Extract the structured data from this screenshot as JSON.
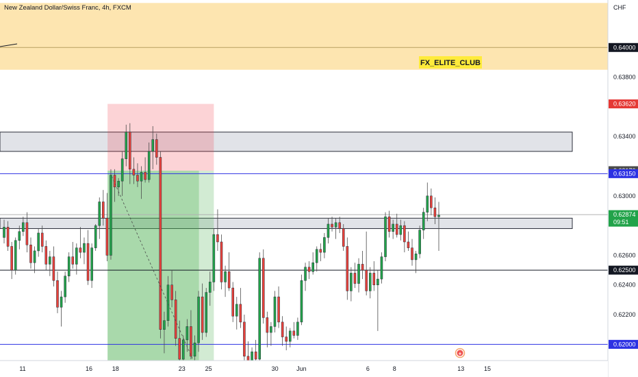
{
  "header": {
    "title": "New Zealand Dollar/Swiss Franc, 4h, FXCM"
  },
  "watermark": {
    "text": "FX_ELITE_CLUB"
  },
  "chart_data": {
    "type": "candlestick",
    "currency": "CHF",
    "ylim": [
      0.6178,
      0.6432
    ],
    "y_ticks": [
      "0.63800",
      "0.63400",
      "0.63000",
      "0.62600",
      "0.62400",
      "0.62200"
    ],
    "x_ticks": [
      {
        "label": "11",
        "day": 11
      },
      {
        "label": "16",
        "day": 16
      },
      {
        "label": "18",
        "day": 18
      },
      {
        "label": "23",
        "day": 23
      },
      {
        "label": "25",
        "day": 25
      },
      {
        "label": "30",
        "day": 30
      },
      {
        "label": "Jun",
        "day": 32
      },
      {
        "label": "6",
        "day": 37
      },
      {
        "label": "8",
        "day": 39
      },
      {
        "label": "13",
        "day": 44
      },
      {
        "label": "15",
        "day": 46
      }
    ],
    "price_tags": [
      {
        "label": "0.64000",
        "value": 0.64,
        "bg": "#131722",
        "fg": "#ffffff"
      },
      {
        "label": "0.63620",
        "value": 0.6362,
        "bg": "#e53935",
        "fg": "#ffffff"
      },
      {
        "label": "0.63170",
        "value": 0.6317,
        "bg": "#4a4a4a",
        "fg": "#ffffff"
      },
      {
        "label": "0.63150",
        "value": 0.6315,
        "bg": "#2c31e3",
        "fg": "#ffffff"
      },
      {
        "label": "0.62874",
        "value": 0.62874,
        "bg": "#22a34a",
        "fg": "#ffffff",
        "sub": "09:51"
      },
      {
        "label": "0.62500",
        "value": 0.625,
        "bg": "#131722",
        "fg": "#ffffff"
      },
      {
        "label": "0.62000",
        "value": 0.62,
        "bg": "#2c31e3",
        "fg": "#ffffff"
      }
    ],
    "horizontal_lines": [
      {
        "value": 0.64,
        "color": "#b8a060"
      },
      {
        "value": 0.6315,
        "color": "#2c31e3"
      },
      {
        "value": 0.625,
        "color": "#131722"
      },
      {
        "value": 0.62,
        "color": "#2c31e3"
      },
      {
        "value": 0.62874,
        "color": "#b0b0b0"
      }
    ],
    "zones": [
      {
        "kind": "supply-band",
        "from": 0.6385,
        "to": 0.643,
        "color": "#fde5b0"
      },
      {
        "kind": "resistance-box",
        "from": 0.633,
        "to": 0.6343,
        "color": "#e1e3e8"
      },
      {
        "kind": "support-box",
        "from": 0.6278,
        "to": 0.6285,
        "color": "#e1e3e8"
      }
    ],
    "short_position": {
      "entry": 0.6317,
      "stop": 0.6362,
      "target": 0.618,
      "from_day": 17.4,
      "to_day": 25.4
    },
    "candles": [
      [
        0.6272,
        0.6284,
        0.6268,
        0.6279
      ],
      [
        0.6279,
        0.6283,
        0.6263,
        0.6266
      ],
      [
        0.6266,
        0.6269,
        0.6244,
        0.625
      ],
      [
        0.625,
        0.6272,
        0.6247,
        0.627
      ],
      [
        0.627,
        0.628,
        0.6264,
        0.6276
      ],
      [
        0.6276,
        0.6286,
        0.6273,
        0.6282
      ],
      [
        0.6282,
        0.6289,
        0.6262,
        0.6267
      ],
      [
        0.6267,
        0.6272,
        0.6251,
        0.6255
      ],
      [
        0.6255,
        0.6266,
        0.6248,
        0.6263
      ],
      [
        0.6263,
        0.6278,
        0.6259,
        0.6275
      ],
      [
        0.6275,
        0.628,
        0.6262,
        0.6266
      ],
      [
        0.6266,
        0.627,
        0.625,
        0.6254
      ],
      [
        0.6254,
        0.6263,
        0.6246,
        0.6259
      ],
      [
        0.6259,
        0.6266,
        0.6239,
        0.6243
      ],
      [
        0.6243,
        0.6249,
        0.6221,
        0.6225
      ],
      [
        0.6225,
        0.6236,
        0.6212,
        0.6232
      ],
      [
        0.6232,
        0.6249,
        0.6228,
        0.6246
      ],
      [
        0.6246,
        0.6262,
        0.6242,
        0.6259
      ],
      [
        0.6259,
        0.6269,
        0.6251,
        0.6254
      ],
      [
        0.6254,
        0.6268,
        0.6247,
        0.6265
      ],
      [
        0.6265,
        0.6279,
        0.6258,
        0.6262
      ],
      [
        0.6262,
        0.6272,
        0.6254,
        0.6268
      ],
      [
        0.6268,
        0.6277,
        0.624,
        0.6243
      ],
      [
        0.6243,
        0.6268,
        0.6238,
        0.6265
      ],
      [
        0.6265,
        0.6281,
        0.6263,
        0.628
      ],
      [
        0.628,
        0.6299,
        0.6271,
        0.6296
      ],
      [
        0.6296,
        0.6304,
        0.628,
        0.6285
      ],
      [
        0.6285,
        0.6302,
        0.6256,
        0.626
      ],
      [
        0.626,
        0.6318,
        0.6257,
        0.6314
      ],
      [
        0.6314,
        0.6318,
        0.6296,
        0.6306
      ],
      [
        0.6306,
        0.6312,
        0.63,
        0.631
      ],
      [
        0.631,
        0.633,
        0.63,
        0.6325
      ],
      [
        0.6325,
        0.6348,
        0.632,
        0.6343
      ],
      [
        0.6343,
        0.6349,
        0.6308,
        0.6318
      ],
      [
        0.6318,
        0.6326,
        0.6308,
        0.6314
      ],
      [
        0.6314,
        0.6322,
        0.6306,
        0.631
      ],
      [
        0.631,
        0.632,
        0.6298,
        0.6316
      ],
      [
        0.6316,
        0.6326,
        0.6309,
        0.6311
      ],
      [
        0.6311,
        0.6336,
        0.6309,
        0.633
      ],
      [
        0.633,
        0.6347,
        0.6318,
        0.6338
      ],
      [
        0.6338,
        0.6342,
        0.6321,
        0.6326
      ],
      [
        0.6326,
        0.633,
        0.6204,
        0.621
      ],
      [
        0.621,
        0.6222,
        0.6194,
        0.6216
      ],
      [
        0.6216,
        0.6246,
        0.6212,
        0.624
      ],
      [
        0.624,
        0.625,
        0.6225,
        0.623
      ],
      [
        0.623,
        0.6236,
        0.6199,
        0.6204
      ],
      [
        0.6204,
        0.6216,
        0.6186,
        0.619
      ],
      [
        0.619,
        0.6206,
        0.6178,
        0.6203
      ],
      [
        0.6203,
        0.6217,
        0.6195,
        0.6212
      ],
      [
        0.6212,
        0.6223,
        0.619,
        0.6192
      ],
      [
        0.6192,
        0.6206,
        0.618,
        0.6201
      ],
      [
        0.6201,
        0.6236,
        0.6195,
        0.6232
      ],
      [
        0.6232,
        0.6241,
        0.6203,
        0.6208
      ],
      [
        0.6208,
        0.6238,
        0.6205,
        0.6235
      ],
      [
        0.6235,
        0.6249,
        0.6226,
        0.6242
      ],
      [
        0.6242,
        0.6278,
        0.6236,
        0.6274
      ],
      [
        0.6274,
        0.6291,
        0.6263,
        0.6269
      ],
      [
        0.6269,
        0.6274,
        0.6237,
        0.6242
      ],
      [
        0.6242,
        0.6253,
        0.6232,
        0.6249
      ],
      [
        0.6249,
        0.6262,
        0.6236,
        0.6238
      ],
      [
        0.6238,
        0.6242,
        0.6215,
        0.6219
      ],
      [
        0.6219,
        0.6232,
        0.621,
        0.6227
      ],
      [
        0.6227,
        0.6238,
        0.6211,
        0.6215
      ],
      [
        0.6215,
        0.622,
        0.6188,
        0.6192
      ],
      [
        0.6192,
        0.6202,
        0.618,
        0.6186
      ],
      [
        0.6186,
        0.6198,
        0.6181,
        0.6195
      ],
      [
        0.6195,
        0.6203,
        0.6185,
        0.619
      ],
      [
        0.619,
        0.6262,
        0.6188,
        0.6258
      ],
      [
        0.6258,
        0.6264,
        0.6214,
        0.6218
      ],
      [
        0.6218,
        0.6222,
        0.6198,
        0.6208
      ],
      [
        0.6208,
        0.6215,
        0.6199,
        0.6212
      ],
      [
        0.6212,
        0.6236,
        0.6208,
        0.6232
      ],
      [
        0.6232,
        0.6239,
        0.6211,
        0.6215
      ],
      [
        0.6215,
        0.6219,
        0.6199,
        0.6205
      ],
      [
        0.6205,
        0.6212,
        0.6196,
        0.6202
      ],
      [
        0.6202,
        0.6211,
        0.6198,
        0.6209
      ],
      [
        0.6209,
        0.6215,
        0.6204,
        0.6206
      ],
      [
        0.6206,
        0.6218,
        0.6203,
        0.6215
      ],
      [
        0.6215,
        0.6247,
        0.6213,
        0.6243
      ],
      [
        0.6243,
        0.6255,
        0.6236,
        0.6252
      ],
      [
        0.6252,
        0.6256,
        0.6244,
        0.6249
      ],
      [
        0.6249,
        0.6262,
        0.6247,
        0.6255
      ],
      [
        0.6255,
        0.6266,
        0.6249,
        0.6264
      ],
      [
        0.6264,
        0.6268,
        0.6256,
        0.6262
      ],
      [
        0.6262,
        0.6275,
        0.6258,
        0.6272
      ],
      [
        0.6272,
        0.6285,
        0.6268,
        0.6281
      ],
      [
        0.6281,
        0.6286,
        0.6276,
        0.6279
      ],
      [
        0.6279,
        0.6285,
        0.6271,
        0.6282
      ],
      [
        0.6282,
        0.6286,
        0.6275,
        0.6278
      ],
      [
        0.6278,
        0.6281,
        0.6263,
        0.6266
      ],
      [
        0.6266,
        0.6272,
        0.623,
        0.6236
      ],
      [
        0.6236,
        0.6252,
        0.6229,
        0.6248
      ],
      [
        0.6248,
        0.6255,
        0.6238,
        0.6241
      ],
      [
        0.6241,
        0.6258,
        0.6235,
        0.6254
      ],
      [
        0.6254,
        0.6263,
        0.6244,
        0.625
      ],
      [
        0.625,
        0.6276,
        0.6233,
        0.6236
      ],
      [
        0.6236,
        0.6252,
        0.6231,
        0.6248
      ],
      [
        0.6248,
        0.6256,
        0.6236,
        0.624
      ],
      [
        0.624,
        0.625,
        0.6209,
        0.6244
      ],
      [
        0.6244,
        0.6262,
        0.6241,
        0.6259
      ],
      [
        0.6259,
        0.6289,
        0.6256,
        0.6286
      ],
      [
        0.6286,
        0.629,
        0.6272,
        0.6276
      ],
      [
        0.6276,
        0.6284,
        0.6271,
        0.6281
      ],
      [
        0.6281,
        0.6288,
        0.6272,
        0.6274
      ],
      [
        0.6274,
        0.6284,
        0.627,
        0.628
      ],
      [
        0.628,
        0.6283,
        0.6262,
        0.6269
      ],
      [
        0.6269,
        0.6276,
        0.6263,
        0.6265
      ],
      [
        0.6265,
        0.6271,
        0.6253,
        0.6257
      ],
      [
        0.6257,
        0.6263,
        0.6248,
        0.6261
      ],
      [
        0.6261,
        0.628,
        0.6258,
        0.6277
      ],
      [
        0.6277,
        0.6292,
        0.6271,
        0.6289
      ],
      [
        0.6289,
        0.6309,
        0.6283,
        0.63
      ],
      [
        0.63,
        0.6305,
        0.6287,
        0.6292
      ],
      [
        0.6292,
        0.6299,
        0.6281,
        0.6286
      ],
      [
        0.6286,
        0.6296,
        0.6263,
        0.6287
      ]
    ]
  }
}
